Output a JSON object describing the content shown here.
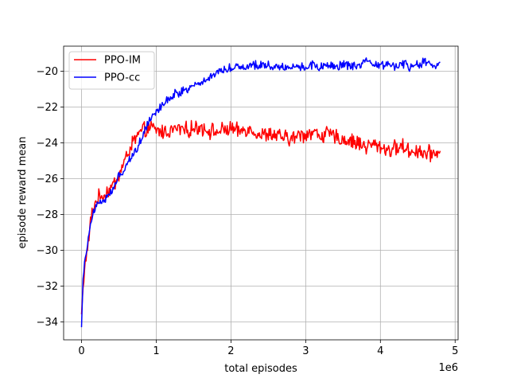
{
  "chart_data": {
    "type": "line",
    "xlabel": "total episodes",
    "ylabel": "episode reward mean",
    "x_offset_text": "1e6",
    "xlim": [
      -0.24,
      5.04
    ],
    "ylim": [
      -35.0,
      -18.6
    ],
    "x_ticks": [
      0,
      1,
      2,
      3,
      4,
      5
    ],
    "x_tick_labels": [
      "0",
      "1",
      "2",
      "3",
      "4",
      "5"
    ],
    "y_ticks": [
      -34,
      -32,
      -30,
      -28,
      -26,
      -24,
      -22,
      -20
    ],
    "y_tick_labels": [
      "−34",
      "−32",
      "−30",
      "−28",
      "−26",
      "−24",
      "−22",
      "−20"
    ],
    "grid": true,
    "legend_position": "upper-left",
    "series": [
      {
        "name": "PPO-IM",
        "color": "#ff0000",
        "x": [
          0.0,
          0.02,
          0.04,
          0.06,
          0.08,
          0.1,
          0.12,
          0.14,
          0.16,
          0.18,
          0.2,
          0.25,
          0.3,
          0.35,
          0.4,
          0.45,
          0.5,
          0.55,
          0.6,
          0.65,
          0.7,
          0.75,
          0.8,
          0.85,
          0.9,
          0.95,
          1.0,
          1.1,
          1.2,
          1.3,
          1.4,
          1.5,
          1.6,
          1.7,
          1.8,
          1.9,
          2.0,
          2.1,
          2.2,
          2.3,
          2.4,
          2.5,
          2.6,
          2.7,
          2.8,
          2.9,
          3.0,
          3.1,
          3.2,
          3.3,
          3.4,
          3.5,
          3.6,
          3.7,
          3.8,
          3.9,
          4.0,
          4.1,
          4.2,
          4.3,
          4.4,
          4.5,
          4.6,
          4.7,
          4.8
        ],
        "y": [
          -33.6,
          -32.2,
          -31.0,
          -30.4,
          -30.0,
          -29.2,
          -28.4,
          -28.0,
          -27.6,
          -27.4,
          -27.2,
          -27.0,
          -26.9,
          -26.7,
          -26.5,
          -26.2,
          -25.8,
          -25.3,
          -24.8,
          -24.3,
          -23.9,
          -23.6,
          -23.4,
          -23.3,
          -23.2,
          -23.2,
          -23.3,
          -23.4,
          -23.3,
          -23.2,
          -23.3,
          -23.2,
          -23.1,
          -23.3,
          -23.4,
          -23.3,
          -23.2,
          -23.4,
          -23.2,
          -23.3,
          -23.6,
          -23.5,
          -23.6,
          -23.7,
          -23.8,
          -23.6,
          -23.5,
          -23.4,
          -23.6,
          -23.5,
          -23.7,
          -23.8,
          -23.9,
          -24.0,
          -24.2,
          -24.1,
          -24.2,
          -24.4,
          -24.3,
          -24.2,
          -24.5,
          -24.4,
          -24.6,
          -24.6,
          -24.4
        ],
        "noise": 0.35
      },
      {
        "name": "PPO-cc",
        "color": "#0000ff",
        "x": [
          0.0,
          0.02,
          0.04,
          0.06,
          0.08,
          0.1,
          0.12,
          0.14,
          0.16,
          0.18,
          0.2,
          0.25,
          0.3,
          0.35,
          0.4,
          0.45,
          0.5,
          0.55,
          0.6,
          0.65,
          0.7,
          0.75,
          0.8,
          0.85,
          0.9,
          0.95,
          1.0,
          1.1,
          1.2,
          1.3,
          1.4,
          1.5,
          1.6,
          1.7,
          1.8,
          1.9,
          2.0,
          2.1,
          2.2,
          2.3,
          2.4,
          2.5,
          2.6,
          2.7,
          2.8,
          2.9,
          3.0,
          3.1,
          3.2,
          3.3,
          3.4,
          3.5,
          3.6,
          3.7,
          3.8,
          3.9,
          4.0,
          4.1,
          4.2,
          4.3,
          4.4,
          4.5,
          4.6,
          4.7,
          4.8
        ],
        "y": [
          -34.2,
          -31.6,
          -30.6,
          -30.2,
          -29.8,
          -29.0,
          -28.4,
          -28.1,
          -27.8,
          -27.6,
          -27.4,
          -27.3,
          -27.2,
          -27.0,
          -26.8,
          -26.3,
          -25.9,
          -25.6,
          -25.2,
          -24.9,
          -24.6,
          -24.2,
          -23.8,
          -23.2,
          -22.8,
          -22.4,
          -22.2,
          -21.8,
          -21.4,
          -21.2,
          -21.0,
          -20.8,
          -20.6,
          -20.4,
          -20.1,
          -19.9,
          -19.8,
          -19.7,
          -19.8,
          -19.6,
          -19.7,
          -19.6,
          -19.8,
          -19.7,
          -19.8,
          -19.7,
          -19.8,
          -19.6,
          -19.8,
          -19.7,
          -19.8,
          -19.6,
          -19.7,
          -19.8,
          -19.5,
          -19.6,
          -19.7,
          -19.6,
          -19.7,
          -19.6,
          -19.8,
          -19.6,
          -19.5,
          -19.7,
          -19.6
        ],
        "noise": 0.2
      }
    ]
  }
}
